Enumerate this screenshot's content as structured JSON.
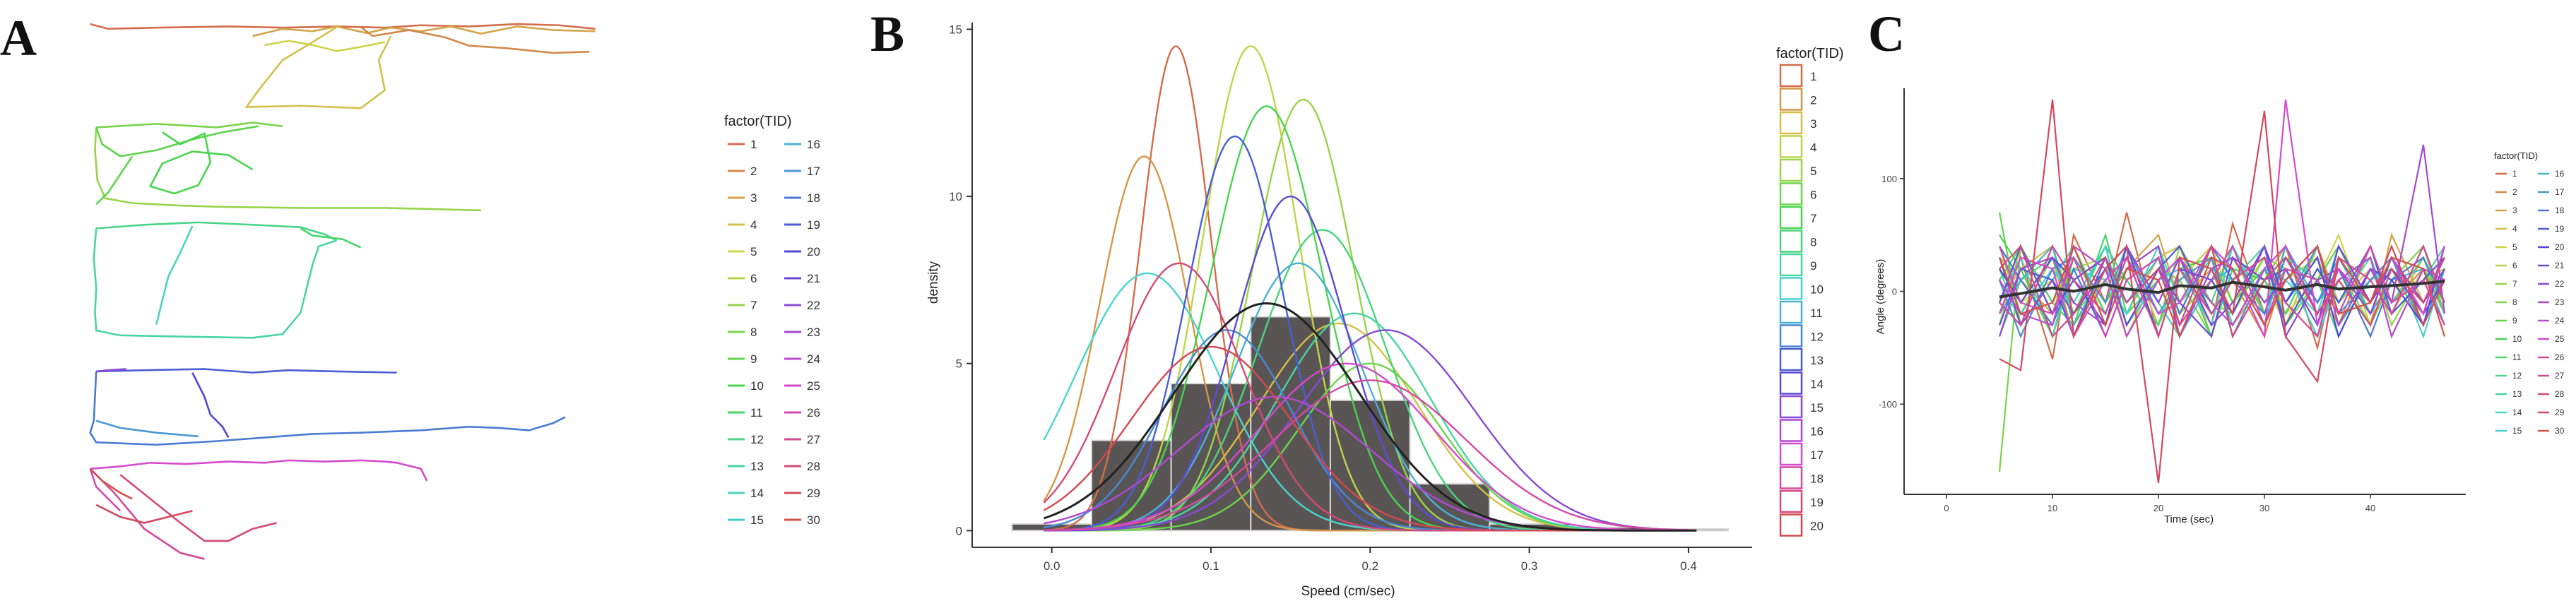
{
  "panels": {
    "a": {
      "letter": "A"
    },
    "b": {
      "letter": "B"
    },
    "c": {
      "letter": "C"
    }
  },
  "chart_data": [
    {
      "type": "line",
      "panel": "A",
      "legend_title": "factor(TID)",
      "legend_labels": [
        "1",
        "2",
        "3",
        "4",
        "5",
        "6",
        "7",
        "8",
        "9",
        "10",
        "11",
        "12",
        "13",
        "14",
        "15",
        "16",
        "17",
        "18",
        "19",
        "20",
        "21",
        "22",
        "23",
        "24",
        "25",
        "26",
        "27",
        "28",
        "29",
        "30"
      ],
      "legend_placement": "right",
      "grid": false
    },
    {
      "type": "area",
      "panel": "B",
      "xlabel": "Speed (cm/sec)",
      "ylabel": "density",
      "xlim": [
        -0.05,
        0.44
      ],
      "ylim": [
        -0.5,
        15.2
      ],
      "x_ticks": [
        "0.0",
        "0.1",
        "0.2",
        "0.3",
        "0.4"
      ],
      "y_ticks": [
        "0",
        "5",
        "10",
        "15"
      ],
      "histogram": {
        "bins": [
          {
            "x0": -0.025,
            "x1": 0.025,
            "density": 0.2
          },
          {
            "x0": 0.025,
            "x1": 0.075,
            "density": 2.7
          },
          {
            "x0": 0.075,
            "x1": 0.125,
            "density": 4.4
          },
          {
            "x0": 0.125,
            "x1": 0.175,
            "density": 6.4
          },
          {
            "x0": 0.175,
            "x1": 0.225,
            "density": 3.9
          },
          {
            "x0": 0.225,
            "x1": 0.275,
            "density": 1.4
          },
          {
            "x0": 0.275,
            "x1": 0.325,
            "density": 0.2
          },
          {
            "x0": 0.325,
            "x1": 0.375,
            "density": 0.1
          },
          {
            "x0": 0.375,
            "x1": 0.425,
            "density": 0.05
          }
        ]
      },
      "overall_density": {
        "mean": 0.135,
        "sd": 0.058,
        "peak": 6.8
      },
      "series": [
        {
          "name": "1",
          "mean": 0.078,
          "sd": 0.022,
          "peak": 14.5
        },
        {
          "name": "2",
          "mean": 0.058,
          "sd": 0.028,
          "peak": 11.2
        },
        {
          "name": "3",
          "mean": 0.18,
          "sd": 0.05,
          "peak": 6.2
        },
        {
          "name": "4",
          "mean": 0.125,
          "sd": 0.03,
          "peak": 14.5
        },
        {
          "name": "5",
          "mean": 0.158,
          "sd": 0.032,
          "peak": 12.9
        },
        {
          "name": "6",
          "mean": 0.2,
          "sd": 0.045,
          "peak": 5.0
        },
        {
          "name": "7",
          "mean": 0.135,
          "sd": 0.035,
          "peak": 12.7
        },
        {
          "name": "8",
          "mean": 0.17,
          "sd": 0.04,
          "peak": 9.0
        },
        {
          "name": "9",
          "mean": 0.19,
          "sd": 0.048,
          "peak": 6.5
        },
        {
          "name": "10",
          "mean": 0.06,
          "sd": 0.045,
          "peak": 7.7
        },
        {
          "name": "11",
          "mean": 0.155,
          "sd": 0.04,
          "peak": 8.0
        },
        {
          "name": "12",
          "mean": 0.11,
          "sd": 0.04,
          "peak": 6.0
        },
        {
          "name": "13",
          "mean": 0.115,
          "sd": 0.03,
          "peak": 11.8
        },
        {
          "name": "14",
          "mean": 0.15,
          "sd": 0.035,
          "peak": 10.0
        },
        {
          "name": "15",
          "mean": 0.21,
          "sd": 0.055,
          "peak": 6.0
        },
        {
          "name": "16",
          "mean": 0.14,
          "sd": 0.06,
          "peak": 4.0
        },
        {
          "name": "17",
          "mean": 0.185,
          "sd": 0.055,
          "peak": 5.0
        },
        {
          "name": "18",
          "mean": 0.2,
          "sd": 0.06,
          "peak": 4.5
        },
        {
          "name": "19",
          "mean": 0.08,
          "sd": 0.04,
          "peak": 8.0
        },
        {
          "name": "20",
          "mean": 0.1,
          "sd": 0.05,
          "peak": 5.5
        }
      ],
      "legend_title": "factor(TID)",
      "legend_labels": [
        "1",
        "2",
        "3",
        "4",
        "5",
        "6",
        "7",
        "8",
        "9",
        "10",
        "11",
        "12",
        "13",
        "14",
        "15",
        "16",
        "17",
        "18",
        "19",
        "20"
      ],
      "legend_placement": "right",
      "grid": false
    },
    {
      "type": "line",
      "panel": "C",
      "xlabel": "Time (sec)",
      "ylabel": "Angle (degrees)",
      "xlim": [
        -4,
        49
      ],
      "ylim": [
        -180,
        180
      ],
      "x_ticks": [
        "0",
        "10",
        "20",
        "30",
        "40"
      ],
      "y_ticks": [
        "100",
        "0",
        "-100"
      ],
      "series_time": [
        5,
        7,
        10,
        12,
        15,
        17,
        20,
        22,
        25,
        27,
        30,
        32,
        35,
        37,
        40,
        42,
        45,
        47
      ],
      "mean_line": [
        -5,
        -2,
        3,
        0,
        6,
        2,
        -1,
        5,
        3,
        8,
        4,
        1,
        6,
        2,
        4,
        5,
        7,
        9
      ],
      "series": [
        {
          "name": "1",
          "values": [
            -20,
            30,
            -60,
            50,
            -10,
            70,
            -40,
            20,
            -30,
            60,
            -20,
            40,
            -50,
            30,
            -10,
            20,
            -30,
            10
          ]
        },
        {
          "name": "2",
          "values": [
            10,
            -40,
            20,
            -10,
            40,
            -30,
            10,
            30,
            -20,
            10,
            -40,
            20,
            10,
            -30,
            40,
            -10,
            20,
            -20
          ]
        },
        {
          "name": "3",
          "values": [
            30,
            10,
            -20,
            40,
            -30,
            20,
            50,
            -10,
            20,
            -30,
            10,
            40,
            -20,
            10,
            -30,
            50,
            -10,
            20
          ]
        },
        {
          "name": "4",
          "values": [
            -10,
            20,
            40,
            -30,
            10,
            -20,
            30,
            40,
            -40,
            20,
            10,
            -30,
            40,
            -10,
            20,
            -20,
            30,
            -10
          ]
        },
        {
          "name": "5",
          "values": [
            20,
            -10,
            10,
            30,
            -20,
            40,
            -30,
            10,
            40,
            -10,
            30,
            -20,
            10,
            50,
            -30,
            10,
            -20,
            40
          ]
        },
        {
          "name": "6",
          "values": [
            -30,
            40,
            -10,
            20,
            30,
            -40,
            20,
            -20,
            10,
            40,
            -30,
            10,
            30,
            -20,
            40,
            -10,
            10,
            20
          ]
        },
        {
          "name": "7",
          "values": [
            40,
            -20,
            30,
            -40,
            20,
            10,
            -30,
            40,
            -10,
            -20,
            30,
            20,
            -40,
            10,
            30,
            -30,
            20,
            -10
          ]
        },
        {
          "name": "8",
          "values": [
            -160,
            40,
            -20,
            10,
            30,
            -30,
            20,
            10,
            -40,
            30,
            -20,
            40,
            -10,
            20,
            -30,
            10,
            40,
            -20
          ]
        },
        {
          "name": "9",
          "values": [
            70,
            -30,
            40,
            -20,
            10,
            30,
            -40,
            20,
            30,
            -10,
            20,
            -30,
            10,
            40,
            -20,
            30,
            -10,
            20
          ]
        },
        {
          "name": "10",
          "values": [
            50,
            20,
            -40,
            30,
            -10,
            20,
            40,
            -30,
            10,
            20,
            -30,
            40,
            -20,
            10,
            30,
            -40,
            20,
            10
          ]
        },
        {
          "name": "11",
          "values": [
            10,
            40,
            -10,
            -30,
            50,
            -20,
            10,
            30,
            -40,
            20,
            10,
            -20,
            40,
            -30,
            10,
            20,
            -10,
            30
          ]
        },
        {
          "name": "12",
          "values": [
            -40,
            10,
            30,
            -20,
            40,
            10,
            -30,
            20,
            -10,
            40,
            -20,
            30,
            10,
            -40,
            20,
            -10,
            30,
            -20
          ]
        },
        {
          "name": "13",
          "values": [
            20,
            -30,
            10,
            40,
            -20,
            30,
            -10,
            -40,
            20,
            10,
            40,
            -30,
            20,
            -10,
            30,
            -20,
            10,
            40
          ]
        },
        {
          "name": "14",
          "values": [
            -10,
            30,
            -40,
            20,
            10,
            -20,
            40,
            -10,
            30,
            -30,
            20,
            10,
            -20,
            40,
            -10,
            30,
            -40,
            20
          ]
        },
        {
          "name": "15",
          "values": [
            30,
            -20,
            20,
            -10,
            40,
            -30,
            10,
            20,
            -30,
            40,
            -10,
            20,
            -40,
            10,
            30,
            -20,
            40,
            -10
          ]
        },
        {
          "name": "16",
          "values": [
            -20,
            10,
            40,
            -30,
            20,
            -10,
            30,
            -40,
            10,
            20,
            -30,
            40,
            -10,
            30,
            -20,
            10,
            20,
            -30
          ]
        },
        {
          "name": "17",
          "values": [
            10,
            -40,
            20,
            30,
            -10,
            40,
            -20,
            10,
            30,
            -40,
            20,
            -10,
            40,
            -20,
            10,
            30,
            -30,
            20
          ]
        },
        {
          "name": "18",
          "values": [
            40,
            10,
            -30,
            20,
            -40,
            10,
            30,
            -20,
            40,
            10,
            -20,
            30,
            -10,
            20,
            -40,
            10,
            30,
            -10
          ]
        },
        {
          "name": "19",
          "values": [
            -30,
            20,
            10,
            -40,
            30,
            -10,
            20,
            40,
            -20,
            10,
            30,
            -30,
            20,
            -10,
            40,
            -20,
            10,
            30
          ]
        },
        {
          "name": "20",
          "values": [
            20,
            -10,
            30,
            10,
            -30,
            40,
            -40,
            20,
            10,
            -20,
            40,
            -10,
            30,
            -40,
            20,
            10,
            -30,
            40
          ]
        },
        {
          "name": "21",
          "values": [
            -10,
            40,
            -20,
            10,
            30,
            -30,
            20,
            -10,
            -40,
            30,
            10,
            20,
            -30,
            40,
            -10,
            20,
            -20,
            10
          ]
        },
        {
          "name": "22",
          "values": [
            30,
            -30,
            10,
            -20,
            20,
            40,
            -10,
            30,
            -30,
            -10,
            40,
            -40,
            10,
            20,
            -20,
            30,
            -10,
            20
          ]
        },
        {
          "name": "23",
          "values": [
            -40,
            20,
            30,
            -10,
            -30,
            20,
            40,
            -40,
            20,
            30,
            -10,
            10,
            40,
            -30,
            20,
            -10,
            130,
            -20
          ]
        },
        {
          "name": "24",
          "values": [
            10,
            -20,
            -30,
            40,
            20,
            -40,
            10,
            30,
            -10,
            -30,
            20,
            40,
            -20,
            10,
            30,
            -40,
            20,
            10
          ]
        },
        {
          "name": "25",
          "values": [
            -20,
            30,
            20,
            -40,
            10,
            30,
            -20,
            -10,
            40,
            20,
            -40,
            170,
            -30,
            20,
            -10,
            30,
            -20,
            40
          ]
        },
        {
          "name": "26",
          "values": [
            40,
            -10,
            -20,
            30,
            -40,
            10,
            30,
            -30,
            10,
            40,
            -30,
            20,
            10,
            -20,
            40,
            -10,
            10,
            -30
          ]
        },
        {
          "name": "27",
          "values": [
            -10,
            -30,
            40,
            10,
            -20,
            30,
            -40,
            20,
            -20,
            10,
            30,
            -10,
            -40,
            30,
            10,
            -20,
            40,
            -10
          ]
        },
        {
          "name": "28",
          "values": [
            20,
            40,
            -40,
            -20,
            30,
            -10,
            20,
            -30,
            40,
            -40,
            10,
            30,
            -20,
            10,
            -30,
            20,
            -10,
            30
          ]
        },
        {
          "name": "29",
          "values": [
            -60,
            -70,
            170,
            -40,
            20,
            40,
            -170,
            30,
            20,
            -20,
            160,
            -40,
            -80,
            30,
            -10,
            40,
            -30,
            10
          ]
        },
        {
          "name": "30",
          "values": [
            30,
            -20,
            -10,
            40,
            -30,
            20,
            10,
            -40,
            30,
            20,
            -30,
            10,
            40,
            -20,
            -10,
            30,
            20,
            -40
          ]
        }
      ],
      "legend_title": "factor(TID)",
      "legend_labels": [
        "1",
        "2",
        "3",
        "4",
        "5",
        "6",
        "7",
        "8",
        "9",
        "10",
        "11",
        "12",
        "13",
        "14",
        "15",
        "16",
        "17",
        "18",
        "19",
        "20",
        "21",
        "22",
        "23",
        "24",
        "25",
        "26",
        "27",
        "28",
        "29",
        "30"
      ],
      "legend_placement": "right",
      "grid": false
    }
  ]
}
